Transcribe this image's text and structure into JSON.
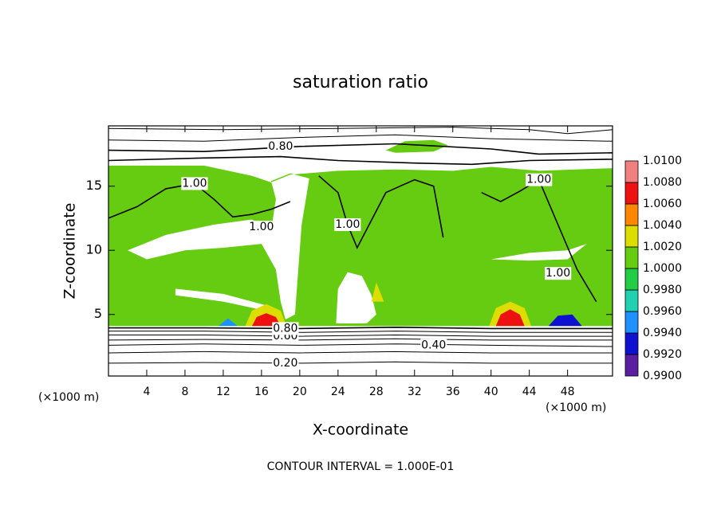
{
  "chart_data": {
    "type": "contour",
    "title": "saturation ratio",
    "x_label": "X-coordinate",
    "y_label": "Z-coordinate",
    "x_unit": "(×1000 m)",
    "y_unit": "(×1000 m)",
    "footnote": "CONTOUR INTERVAL = 1.000E-01",
    "xlim": [
      0,
      52.7
    ],
    "ylim": [
      0.2,
      19.7
    ],
    "xticks": [
      4,
      8,
      12,
      16,
      20,
      24,
      28,
      32,
      36,
      40,
      44,
      48
    ],
    "yticks": [
      5,
      10,
      15
    ],
    "colorbar": {
      "levels": [
        {
          "value": 0.99,
          "label": "0.9900"
        },
        {
          "value": 0.992,
          "label": "0.9920"
        },
        {
          "value": 0.994,
          "label": "0.9940"
        },
        {
          "value": 0.996,
          "label": "0.9960"
        },
        {
          "value": 0.998,
          "label": "0.9980"
        },
        {
          "value": 1.0,
          "label": "1.0000"
        },
        {
          "value": 1.002,
          "label": "1.0020"
        },
        {
          "value": 1.004,
          "label": "1.0040"
        },
        {
          "value": 1.006,
          "label": "1.0060"
        },
        {
          "value": 1.008,
          "label": "1.0080"
        },
        {
          "value": 1.01,
          "label": "1.0100"
        }
      ],
      "colors": [
        "#5a1ea0",
        "#1010d0",
        "#1e90ff",
        "#20d0b0",
        "#22cc44",
        "#66cc11",
        "#dddd00",
        "#ff8800",
        "#ee1111",
        "#f08080"
      ]
    },
    "regions": [
      {
        "value": 1.001,
        "x": [
          0,
          52.7,
          52.7,
          45,
          40,
          36,
          30,
          24,
          19,
          17,
          15,
          10,
          5,
          0,
          null,
          2,
          6,
          11,
          15,
          17,
          17.5,
          17,
          19,
          21,
          20.2,
          19.8,
          19.5,
          18.5,
          18,
          17.5,
          16,
          12,
          8,
          4,
          null,
          7,
          12,
          17,
          17,
          12,
          7,
          null,
          23.8,
          24,
          25,
          26.5,
          27.5,
          28,
          27,
          null,
          40,
          44,
          48,
          50,
          48,
          44
        ],
        "z": [
          4.1,
          4.1,
          16.4,
          16.2,
          16.5,
          16.2,
          16.3,
          16.2,
          15.9,
          15.3,
          15.8,
          16.6,
          16.6,
          16.6,
          null,
          10,
          11.2,
          12,
          12.4,
          11.5,
          14,
          15.4,
          16,
          15.6,
          12,
          8,
          5,
          4.6,
          6,
          8.5,
          10.5,
          10.2,
          10,
          9.3,
          null,
          7,
          6.6,
          5.6,
          5.2,
          6,
          6.5,
          null,
          4.3,
          7,
          8.3,
          8,
          6.5,
          5,
          4.3,
          null,
          9.3,
          9.8,
          10,
          10.5,
          9.3,
          9.2
        ]
      },
      {
        "value": 1.001,
        "x": [
          29,
          31,
          34,
          35.5,
          34,
          30
        ],
        "z": [
          17.8,
          18.5,
          18.6,
          18.2,
          17.7,
          17.6
        ]
      },
      {
        "value": 1.003,
        "x": [
          14.3,
          15,
          16.5,
          18,
          18.6
        ],
        "z": [
          4.1,
          5.3,
          5.8,
          5.3,
          4.1
        ]
      },
      {
        "value": 1.007,
        "x": [
          15,
          15.5,
          16.5,
          17.5,
          18
        ],
        "z": [
          4.1,
          4.8,
          5.1,
          4.8,
          4.1
        ]
      },
      {
        "value": 1.003,
        "x": [
          39.8,
          40.5,
          42,
          43.5,
          44.2
        ],
        "z": [
          4.1,
          5.5,
          6,
          5.5,
          4.1
        ]
      },
      {
        "value": 1.007,
        "x": [
          40.5,
          41,
          42,
          43,
          43.5
        ],
        "z": [
          4.1,
          5,
          5.4,
          5,
          4.1
        ]
      },
      {
        "value": 0.993,
        "x": [
          46,
          47,
          48.5,
          49.5
        ],
        "z": [
          4.1,
          4.9,
          5,
          4.1
        ]
      },
      {
        "value": 0.995,
        "x": [
          11.5,
          12.5,
          13.5
        ],
        "z": [
          4.1,
          4.7,
          4.1
        ]
      },
      {
        "value": 1.003,
        "x": [
          27.5,
          28,
          28.8
        ],
        "z": [
          6,
          7.5,
          6
        ]
      }
    ],
    "contours": [
      {
        "level": 0.2,
        "x": [
          0,
          10,
          20,
          30,
          40,
          52.7
        ],
        "z": [
          1.2,
          1.25,
          1.2,
          1.3,
          1.2,
          1.2
        ]
      },
      {
        "level": 0.3,
        "x": [
          0,
          10,
          20,
          30,
          40,
          52.7
        ],
        "z": [
          2.0,
          2.1,
          2.0,
          2.1,
          2.0,
          2.0
        ]
      },
      {
        "level": 0.4,
        "x": [
          0,
          10,
          20,
          30,
          40,
          52.7
        ],
        "z": [
          2.6,
          2.7,
          2.6,
          2.7,
          2.6,
          2.5
        ]
      },
      {
        "level": 0.5,
        "x": [
          0,
          10,
          20,
          30,
          40,
          52.7
        ],
        "z": [
          3.0,
          3.05,
          3.0,
          3.1,
          3.0,
          3.0
        ]
      },
      {
        "level": 0.6,
        "x": [
          0,
          10,
          20,
          30,
          40,
          52.7
        ],
        "z": [
          3.4,
          3.4,
          3.3,
          3.4,
          3.3,
          3.3
        ]
      },
      {
        "level": 0.7,
        "x": [
          0,
          10,
          20,
          30,
          40,
          52.7
        ],
        "z": [
          3.7,
          3.7,
          3.6,
          3.7,
          3.6,
          3.6
        ]
      },
      {
        "level": 0.8,
        "x": [
          0,
          10,
          20,
          30,
          40,
          52.7
        ],
        "z": [
          3.95,
          3.95,
          3.9,
          4.0,
          3.9,
          3.9
        ]
      },
      {
        "level": 0.8,
        "x": [
          0,
          10,
          20,
          30,
          40,
          45,
          52.7
        ],
        "z": [
          17.8,
          17.7,
          18.1,
          18.3,
          17.9,
          17.5,
          17.6
        ]
      },
      {
        "level": 0.7,
        "x": [
          0,
          10,
          20,
          30,
          40,
          52.7
        ],
        "z": [
          18.6,
          18.5,
          18.8,
          19.0,
          18.7,
          18.5
        ]
      },
      {
        "level": 0.6,
        "x": [
          0,
          12,
          24,
          36,
          44,
          48,
          52.7
        ],
        "z": [
          19.5,
          19.4,
          19.5,
          19.6,
          19.4,
          19.1,
          19.4
        ]
      },
      {
        "level": 0.9,
        "x": [
          0,
          10,
          18,
          24,
          32,
          38,
          44,
          52.7
        ],
        "z": [
          17.0,
          17.2,
          17.3,
          17.0,
          16.8,
          16.7,
          17.0,
          17.1
        ]
      },
      {
        "level": 1.0,
        "x": [
          0,
          3,
          6,
          9,
          11,
          13,
          15,
          17,
          19
        ],
        "z": [
          12.5,
          13.4,
          14.8,
          15.2,
          14.0,
          12.6,
          12.8,
          13.2,
          13.8
        ]
      },
      {
        "level": 1.0,
        "x": [
          22,
          24,
          25,
          26,
          29,
          32,
          34,
          35
        ],
        "z": [
          15.8,
          14.5,
          12.0,
          10.2,
          14.5,
          15.5,
          15.0,
          11.0
        ]
      },
      {
        "level": 1.0,
        "x": [
          39,
          41,
          43,
          45,
          47,
          49,
          51
        ],
        "z": [
          14.5,
          13.8,
          14.6,
          15.5,
          12.0,
          8.5,
          6.0
        ]
      }
    ],
    "contour_labels": [
      {
        "value": 0.2,
        "label": "0.20",
        "x": 18.5,
        "z": 1.2
      },
      {
        "value": 0.4,
        "label": "0.40",
        "x": 34,
        "z": 2.6
      },
      {
        "value": 0.6,
        "label": "0.60",
        "x": 18.5,
        "z": 3.3
      },
      {
        "value": 0.8,
        "label": "0.80",
        "x": 18.5,
        "z": 3.9
      },
      {
        "value": 0.8,
        "label": "0.80",
        "x": 18,
        "z": 18.1
      },
      {
        "value": 1.0,
        "label": "1.00",
        "x": 9,
        "z": 15.2
      },
      {
        "value": 1.0,
        "label": "1.00",
        "x": 16,
        "z": 11.8
      },
      {
        "value": 1.0,
        "label": "1.00",
        "x": 25,
        "z": 12.0
      },
      {
        "value": 1.0,
        "label": "1.00",
        "x": 45,
        "z": 15.5
      },
      {
        "value": 1.0,
        "label": "1.00",
        "x": 47,
        "z": 8.2
      }
    ]
  }
}
